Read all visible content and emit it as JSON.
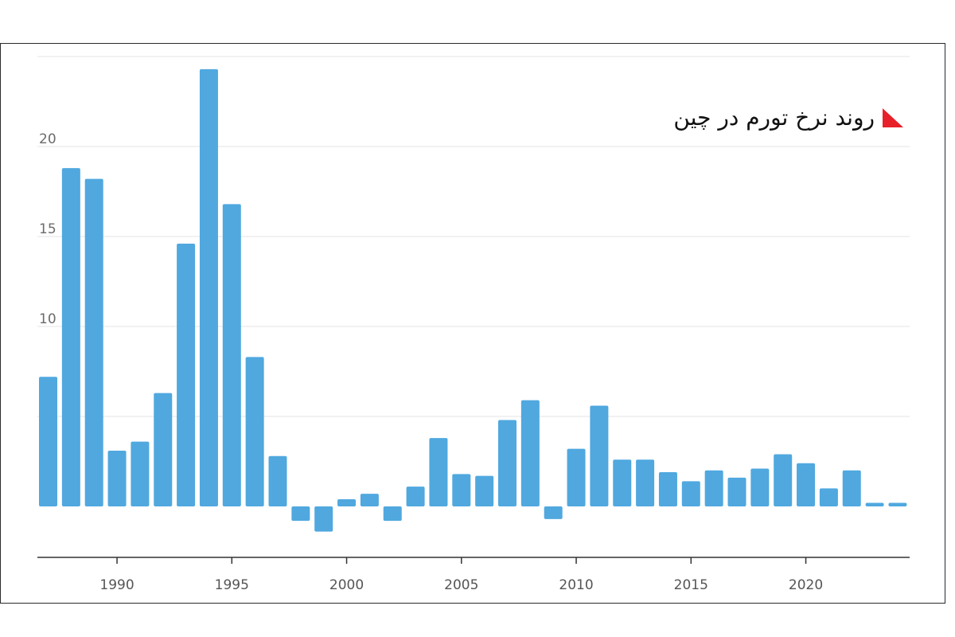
{
  "chart_data": {
    "type": "bar",
    "title": "روند نرخ تورم در چین",
    "xlabel": "",
    "ylabel": "",
    "x": [
      1987,
      1988,
      1989,
      1990,
      1991,
      1992,
      1993,
      1994,
      1995,
      1996,
      1997,
      1998,
      1999,
      2000,
      2001,
      2002,
      2003,
      2004,
      2005,
      2006,
      2007,
      2008,
      2009,
      2010,
      2011,
      2012,
      2013,
      2014,
      2015,
      2016,
      2017,
      2018,
      2019,
      2020,
      2021,
      2022,
      2023,
      2024
    ],
    "values": [
      7.2,
      18.8,
      18.2,
      3.1,
      3.6,
      6.3,
      14.6,
      24.3,
      16.8,
      8.3,
      2.8,
      -0.8,
      -1.4,
      0.4,
      0.7,
      -0.8,
      1.1,
      3.8,
      1.8,
      1.7,
      4.8,
      5.9,
      -0.7,
      3.2,
      5.6,
      2.6,
      2.6,
      1.9,
      1.4,
      2.0,
      1.6,
      2.1,
      2.9,
      2.4,
      1.0,
      2.0,
      0.2,
      0.2
    ],
    "ylim": [
      -2.7,
      25
    ],
    "yticks": [
      0,
      5,
      10,
      15,
      20
    ],
    "xticks": [
      1990,
      1995,
      2000,
      2005,
      2010,
      2015,
      2020
    ],
    "grid": true,
    "colors": {
      "bar": "#50a8df",
      "grid": "#e3e3e3",
      "axis": "#333333",
      "title_mark": "#e8202a"
    }
  }
}
